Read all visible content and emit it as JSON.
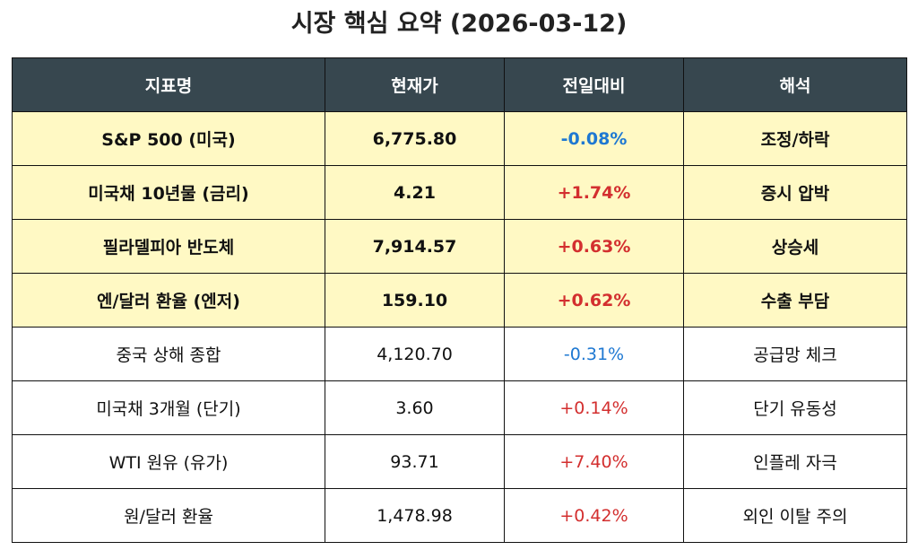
{
  "title": "시장 핵심 요약 (2026-03-12)",
  "colors": {
    "header_bg": "#37474f",
    "highlight_bg": "#fff9c4",
    "negative": "#1e78d2",
    "positive": "#d32f2f"
  },
  "headers": [
    "지표명",
    "현재가",
    "전일대비",
    "해석"
  ],
  "rows": [
    {
      "name": "S&P 500 (미국)",
      "price": "6,775.80",
      "change": "-0.08%",
      "note": "조정/하락",
      "highlight": true
    },
    {
      "name": "미국채 10년물 (금리)",
      "price": "4.21",
      "change": "+1.74%",
      "note": "증시 압박",
      "highlight": true
    },
    {
      "name": "필라델피아 반도체",
      "price": "7,914.57",
      "change": "+0.63%",
      "note": "상승세",
      "highlight": true
    },
    {
      "name": "엔/달러 환율 (엔저)",
      "price": "159.10",
      "change": "+0.62%",
      "note": "수출 부담",
      "highlight": true
    },
    {
      "name": "중국 상해 종합",
      "price": "4,120.70",
      "change": "-0.31%",
      "note": "공급망 체크",
      "highlight": false
    },
    {
      "name": "미국채 3개월 (단기)",
      "price": "3.60",
      "change": "+0.14%",
      "note": "단기 유동성",
      "highlight": false
    },
    {
      "name": "WTI 원유 (유가)",
      "price": "93.71",
      "change": "+7.40%",
      "note": "인플레 자극",
      "highlight": false
    },
    {
      "name": "원/달러 환율",
      "price": "1,478.98",
      "change": "+0.42%",
      "note": "외인 이탈 주의",
      "highlight": false
    }
  ]
}
